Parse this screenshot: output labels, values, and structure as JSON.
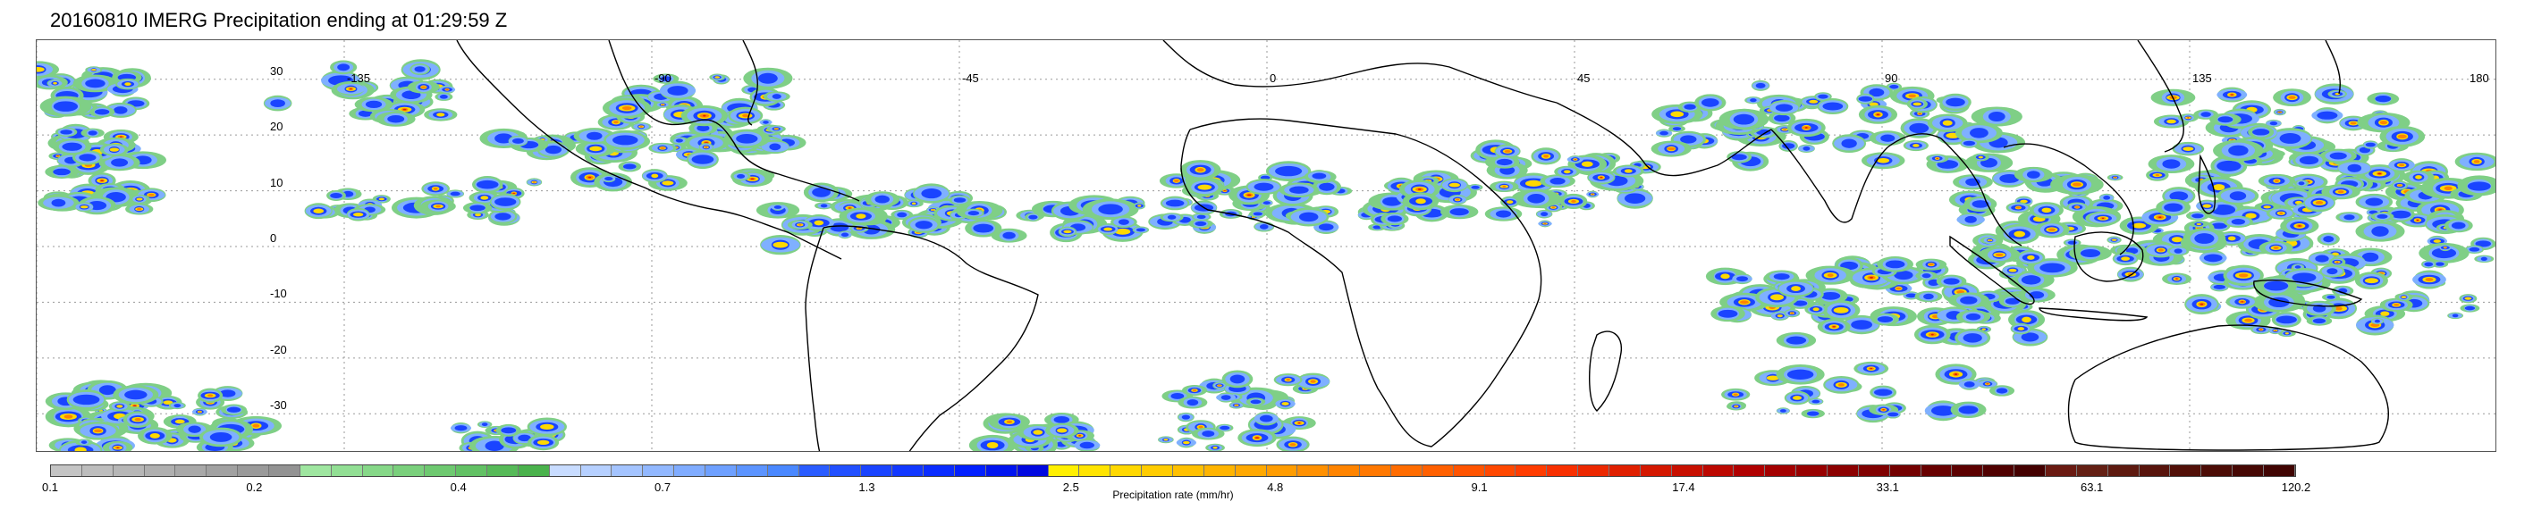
{
  "title": "20160810 IMERG Precipitation ending at 01:29:59 Z",
  "map": {
    "lat_labels": [
      "30",
      "20",
      "10",
      "0",
      "-10",
      "-20",
      "-30"
    ],
    "lon_labels": [
      "-135",
      "-90",
      "-45",
      "0",
      "45",
      "90",
      "135",
      "180"
    ],
    "grid": true,
    "grid_color": "#9a9a9a",
    "coast_color": "#000000"
  },
  "colorbar": {
    "label": "Precipitation rate (mm/hr)",
    "ticks": [
      "0.1",
      "0.2",
      "0.4",
      "0.7",
      "1.3",
      "2.5",
      "4.8",
      "9.1",
      "17.4",
      "33.1",
      "63.1",
      "120.2"
    ],
    "colors": [
      "#c4c4c4",
      "#bdbdbd",
      "#b6b6b6",
      "#afafaf",
      "#a8a8a8",
      "#a1a1a1",
      "#9a9a9a",
      "#939393",
      "#9fe6a0",
      "#92df94",
      "#86d888",
      "#7ad07c",
      "#6ec970",
      "#62c164",
      "#56ba58",
      "#4ab24c",
      "#c8dcff",
      "#b6d0ff",
      "#a4c4ff",
      "#92b8ff",
      "#80acff",
      "#6ea0ff",
      "#5c94ff",
      "#4a88ff",
      "#2a5cff",
      "#2250ff",
      "#1a44ff",
      "#1238ff",
      "#0a2cff",
      "#0220ff",
      "#0014f0",
      "#0008e0",
      "#fff000",
      "#ffe400",
      "#ffd800",
      "#ffcc00",
      "#ffc000",
      "#ffb400",
      "#ffa800",
      "#ff9c00",
      "#ff9000",
      "#ff8400",
      "#ff7800",
      "#ff6c00",
      "#ff6000",
      "#ff5400",
      "#ff4800",
      "#ff3c00",
      "#f83000",
      "#ec2800",
      "#e02000",
      "#d41800",
      "#c81000",
      "#bc0800",
      "#b00000",
      "#a40000",
      "#980000",
      "#8c0000",
      "#800000",
      "#740000",
      "#680000",
      "#5c0000",
      "#500000",
      "#440000",
      "#6a1a12",
      "#642014",
      "#5e1a10",
      "#58140c",
      "#521008",
      "#4c0c06",
      "#460804",
      "#400402"
    ]
  }
}
